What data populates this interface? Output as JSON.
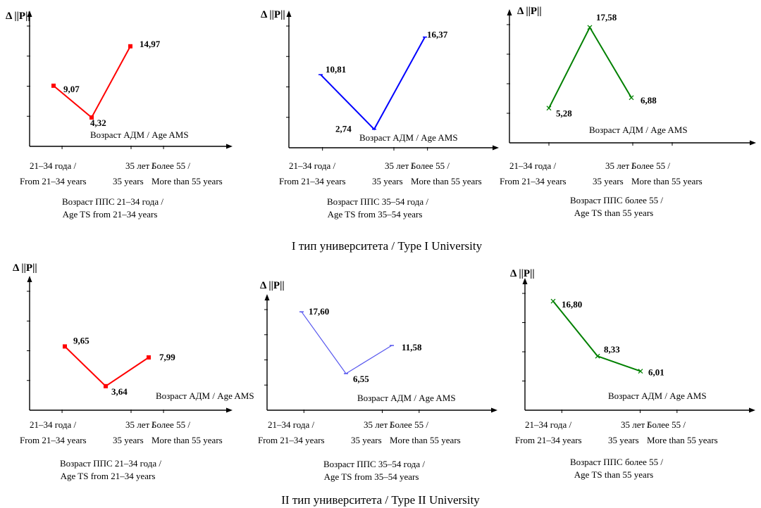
{
  "figure": {
    "row_titles": [
      "I тип университета / Type I University",
      "II тип университета / Type II University"
    ]
  },
  "chart_data": [
    {
      "type": "line",
      "ylabel": "Δ ||P||",
      "xlabel": "Возраст АДМ / Age AMS",
      "categories": [
        [
          "21–34 года /",
          "From 21–34 years"
        ],
        [
          "35 лет /",
          "35 years"
        ],
        [
          "Более 55 /",
          "More than 55 years"
        ]
      ],
      "caption": [
        "Возраст ППС 21–34 года /",
        "Age TS from 21–34 years"
      ],
      "series": [
        {
          "values": [
            9.07,
            4.32,
            14.97
          ],
          "labels": [
            "9,07",
            "4,32",
            "14,97"
          ],
          "color": "#ff0000",
          "marker": "square"
        }
      ],
      "ylim": [
        0,
        18
      ]
    },
    {
      "type": "line",
      "ylabel": "Δ ||P||",
      "xlabel": "Возраст АДМ / Age AMS",
      "categories": [
        [
          "21–34 года /",
          "From 21–34 years"
        ],
        [
          "35 лет /",
          "35 years"
        ],
        [
          "Более 55 /",
          "More than 55 years"
        ]
      ],
      "caption": [
        "Возраст ППС 35–54 года /",
        "Age TS from 35–54 years"
      ],
      "series": [
        {
          "values": [
            10.81,
            2.74,
            16.37
          ],
          "labels": [
            "10,81",
            "2,74",
            "16,37"
          ],
          "color": "#0000ff",
          "marker": "dash"
        }
      ],
      "ylim": [
        0,
        18
      ]
    },
    {
      "type": "line",
      "ylabel": "Δ ||P||",
      "xlabel": "Возраст АДМ / Age AMS",
      "categories": [
        [
          "21–34 года /",
          "From 21–34 years"
        ],
        [
          "35 лет /",
          "35 years"
        ],
        [
          "Более 55 /",
          "More than 55 years"
        ]
      ],
      "caption": [
        "Возраст ППС более 55 /",
        "Age TS than 55 years"
      ],
      "series": [
        {
          "values": [
            5.28,
            17.58,
            6.88
          ],
          "labels": [
            "5,28",
            "17,58",
            "6,88"
          ],
          "color": "#008000",
          "marker": "x"
        }
      ],
      "ylim": [
        0,
        18
      ]
    },
    {
      "type": "line",
      "ylabel": "Δ ||P||",
      "xlabel": "Возраст АДМ / Age AMS",
      "categories": [
        [
          "21–34 года /",
          "From 21–34 years"
        ],
        [
          "35 лет /",
          "35 years"
        ],
        [
          "Более 55 /",
          "More than 55 years"
        ]
      ],
      "caption": [
        "Возраст ППС 21–34 года /",
        "Age TS from 21–34 years"
      ],
      "series": [
        {
          "values": [
            9.65,
            3.64,
            7.99
          ],
          "labels": [
            "9,65",
            "3,64",
            "7,99"
          ],
          "color": "#ff0000",
          "marker": "square"
        }
      ],
      "ylim": [
        0,
        18
      ]
    },
    {
      "type": "line",
      "ylabel": "Δ ||P||",
      "xlabel": "Возраст АДМ / Age AMS",
      "categories": [
        [
          "21–34 года /",
          "From 21–34 years"
        ],
        [
          "35 лет /",
          "35 years"
        ],
        [
          "Более 55 /",
          "More than 55 years"
        ]
      ],
      "caption": [
        "Возраст ППС 35–54 года /",
        "Age TS from 35–54 years"
      ],
      "series": [
        {
          "values": [
            17.6,
            6.55,
            11.58
          ],
          "labels": [
            "17,60",
            "6,55",
            "11,58"
          ],
          "color": "#5555ee",
          "marker": "dash"
        }
      ],
      "ylim": [
        0,
        18
      ]
    },
    {
      "type": "line",
      "ylabel": "Δ ||P||",
      "xlabel": "Возраст АДМ / Age AMS",
      "categories": [
        [
          "21–34 года /",
          "From 21–34 years"
        ],
        [
          "35 лет /",
          "35 years"
        ],
        [
          "Более 55 /",
          "More than 55 years"
        ]
      ],
      "caption": [
        "Возраст ППС более 55 /",
        "Age TS than 55 years"
      ],
      "series": [
        {
          "values": [
            16.8,
            8.33,
            6.01
          ],
          "labels": [
            "16,80",
            "8,33",
            "6,01"
          ],
          "color": "#008000",
          "marker": "x"
        }
      ],
      "ylim": [
        0,
        18
      ]
    }
  ]
}
